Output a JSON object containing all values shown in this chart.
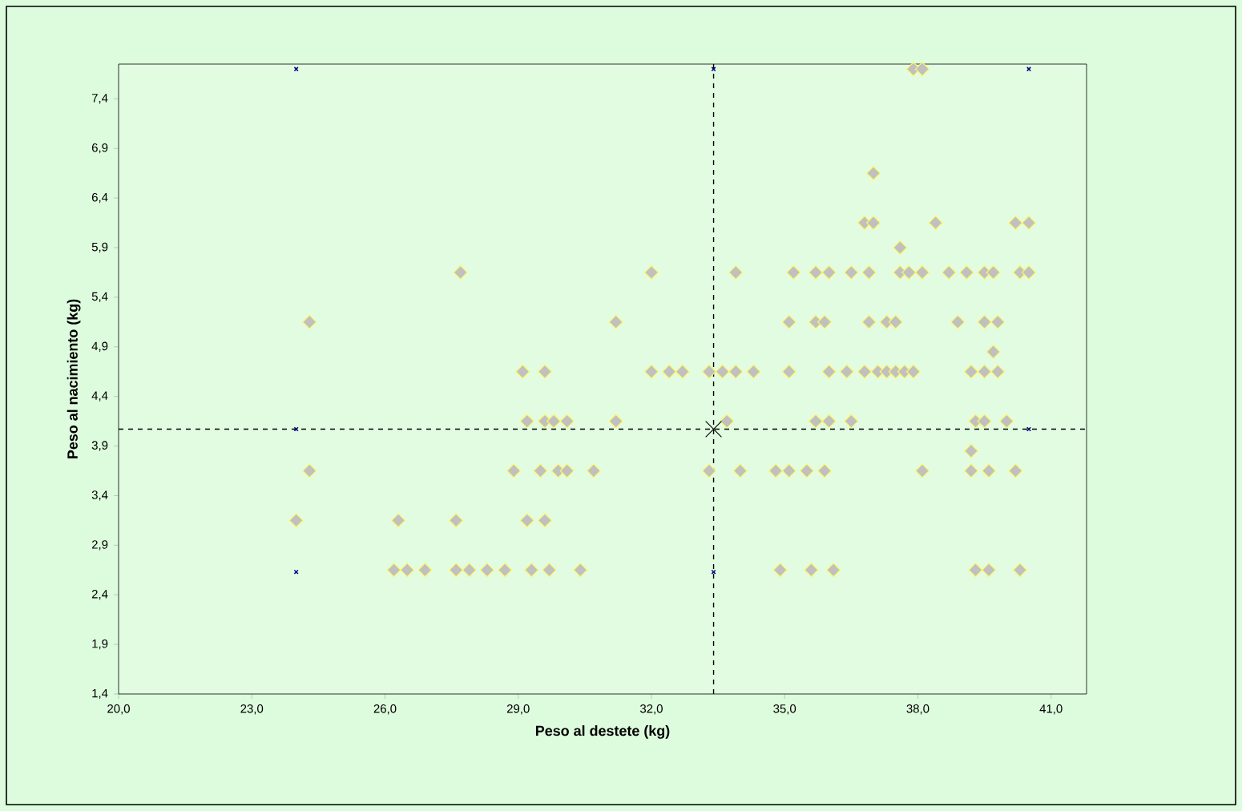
{
  "chart_data": {
    "type": "scatter",
    "xlabel": "Peso al destete (kg)",
    "ylabel": "Peso al nacimiento (kg)",
    "xlim": [
      20,
      41.8
    ],
    "ylim": [
      1.4,
      7.75
    ],
    "xticks": [
      {
        "value": 20,
        "label": "20,0"
      },
      {
        "value": 23,
        "label": "23,0"
      },
      {
        "value": 26,
        "label": "26,0"
      },
      {
        "value": 29,
        "label": "29,0"
      },
      {
        "value": 32,
        "label": "32,0"
      },
      {
        "value": 35,
        "label": "35,0"
      },
      {
        "value": 38,
        "label": "38,0"
      },
      {
        "value": 41,
        "label": "41,0"
      }
    ],
    "yticks": [
      {
        "value": 1.4,
        "label": "1,4"
      },
      {
        "value": 1.9,
        "label": "1,9"
      },
      {
        "value": 2.4,
        "label": "2,4"
      },
      {
        "value": 2.9,
        "label": "2,9"
      },
      {
        "value": 3.4,
        "label": "3,4"
      },
      {
        "value": 3.9,
        "label": "3,9"
      },
      {
        "value": 4.4,
        "label": "4,4"
      },
      {
        "value": 4.9,
        "label": "4,9"
      },
      {
        "value": 5.4,
        "label": "5,4"
      },
      {
        "value": 5.9,
        "label": "5,9"
      },
      {
        "value": 6.4,
        "label": "6,4"
      },
      {
        "value": 6.9,
        "label": "6,9"
      },
      {
        "value": 7.4,
        "label": "7,4"
      }
    ],
    "grid": false,
    "ref_lines": [
      {
        "axis": "x",
        "value": 33.4,
        "color": "#000000",
        "line_style": "dashed"
      },
      {
        "axis": "y",
        "value": 4.07,
        "color": "#000000",
        "line_style": "dashed"
      }
    ],
    "series": [
      {
        "color": "#c0c0c0",
        "marker": "diamond",
        "x": [
          37.9,
          38.1,
          37.0,
          36.8,
          37.0,
          38.4,
          40.2,
          40.5,
          37.6,
          27.7,
          32.0,
          33.9,
          35.2,
          35.7,
          36.0,
          36.5,
          36.9,
          37.6,
          37.8,
          38.1,
          38.7,
          39.1,
          39.5,
          39.7,
          40.3,
          40.5,
          24.3,
          31.2,
          35.1,
          35.7,
          35.9,
          36.9,
          37.3,
          37.5,
          38.9,
          39.5,
          39.8,
          39.7,
          29.1,
          29.6,
          32.0,
          32.4,
          32.7,
          33.3,
          33.6,
          33.9,
          34.3,
          35.1,
          36.0,
          36.4,
          36.8,
          37.1,
          37.3,
          37.5,
          37.7,
          37.9,
          39.2,
          39.5,
          39.8,
          29.2,
          29.6,
          29.8,
          30.1,
          31.2,
          33.7,
          35.7,
          36.0,
          36.5,
          39.3,
          39.5,
          40.0,
          39.2,
          24.3,
          28.9,
          29.5,
          29.9,
          30.1,
          30.7,
          33.3,
          34.0,
          34.8,
          35.1,
          35.5,
          35.9,
          38.1,
          39.2,
          39.6,
          40.2,
          24.0,
          26.3,
          27.6,
          29.2,
          29.6,
          26.2,
          26.5,
          26.9,
          27.6,
          27.9,
          28.3,
          28.7,
          29.3,
          29.7,
          30.4,
          34.9,
          35.6,
          36.1,
          39.3,
          39.6,
          40.3
        ],
        "values": [
          7.7,
          7.7,
          6.65,
          6.15,
          6.15,
          6.15,
          6.15,
          6.15,
          5.9,
          5.65,
          5.65,
          5.65,
          5.65,
          5.65,
          5.65,
          5.65,
          5.65,
          5.65,
          5.65,
          5.65,
          5.65,
          5.65,
          5.65,
          5.65,
          5.65,
          5.65,
          5.15,
          5.15,
          5.15,
          5.15,
          5.15,
          5.15,
          5.15,
          5.15,
          5.15,
          5.15,
          5.15,
          4.85,
          4.65,
          4.65,
          4.65,
          4.65,
          4.65,
          4.65,
          4.65,
          4.65,
          4.65,
          4.65,
          4.65,
          4.65,
          4.65,
          4.65,
          4.65,
          4.65,
          4.65,
          4.65,
          4.65,
          4.65,
          4.65,
          4.15,
          4.15,
          4.15,
          4.15,
          4.15,
          4.15,
          4.15,
          4.15,
          4.15,
          4.15,
          4.15,
          4.15,
          3.85,
          3.65,
          3.65,
          3.65,
          3.65,
          3.65,
          3.65,
          3.65,
          3.65,
          3.65,
          3.65,
          3.65,
          3.65,
          3.65,
          3.65,
          3.65,
          3.65,
          3.15,
          3.15,
          3.15,
          3.15,
          3.15,
          2.65,
          2.65,
          2.65,
          2.65,
          2.65,
          2.65,
          2.65,
          2.65,
          2.65,
          2.65,
          2.65,
          2.65,
          2.65,
          2.65,
          2.65,
          2.65
        ]
      },
      {
        "color": "#000080",
        "marker": "cross",
        "x": [
          24.0,
          33.4,
          40.5,
          24.0,
          40.5,
          24.0,
          33.4
        ],
        "values": [
          7.7,
          7.7,
          7.7,
          4.07,
          4.07,
          2.63,
          2.63
        ]
      },
      {
        "color": "#000000",
        "marker": "cross",
        "x": [
          33.4
        ],
        "values": [
          4.07
        ]
      }
    ]
  }
}
